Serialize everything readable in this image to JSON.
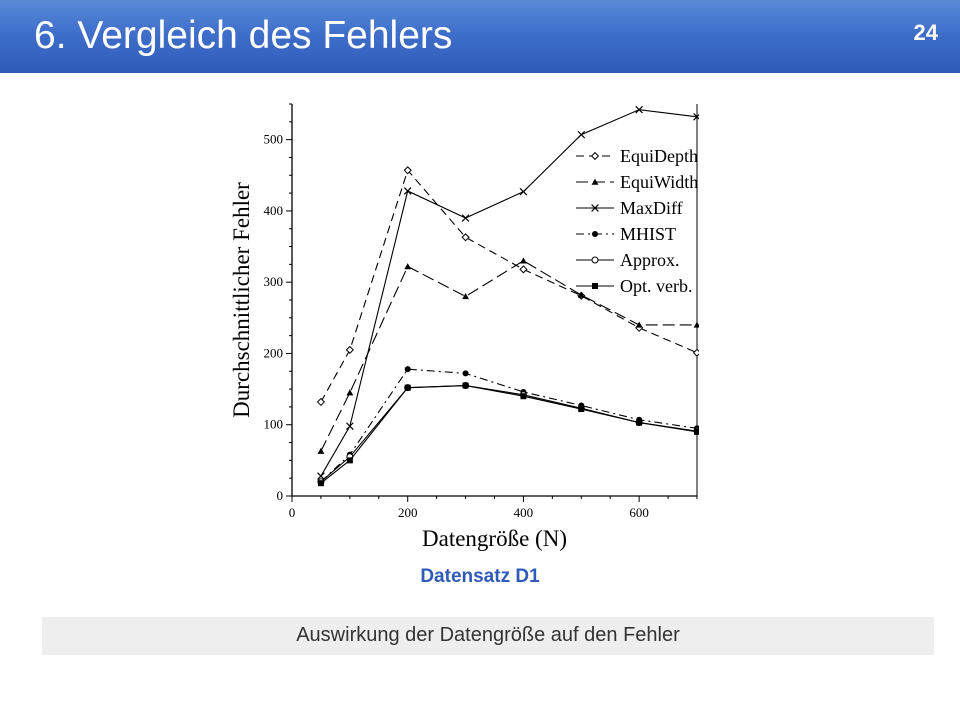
{
  "slide": {
    "title": "6. Vergleich des Fehlers",
    "page_number": "24",
    "dataset_label": "Datensatz D1",
    "caption": "Auswirkung der Datengröße auf den Fehler",
    "colors": {
      "header": "#3f6fca",
      "accent_text": "#2f5bb8",
      "caption_bg": "#eeeeee"
    }
  },
  "chart_data": {
    "type": "line",
    "title": "",
    "xlabel": "Datengröße (N)",
    "ylabel": "Durchschnittlicher Fehler",
    "xlim": [
      0,
      700
    ],
    "ylim": [
      0,
      550
    ],
    "xticks": [
      0,
      200,
      400,
      600
    ],
    "yticks": [
      0,
      100,
      200,
      300,
      400,
      500
    ],
    "grid": false,
    "legend_position": "top-right",
    "x": [
      50,
      100,
      200,
      300,
      400,
      500,
      600,
      700
    ],
    "series": [
      {
        "name": "EquiDepth",
        "values": [
          132,
          205,
          457,
          363,
          318,
          281,
          236,
          201
        ],
        "dash": "8,5",
        "marker": "diamond-open"
      },
      {
        "name": "EquiWidth",
        "values": [
          63,
          145,
          322,
          280,
          330,
          282,
          240,
          240
        ],
        "dash": "12,5",
        "marker": "triangle-filled"
      },
      {
        "name": "MaxDiff",
        "values": [
          28,
          98,
          428,
          390,
          427,
          507,
          542,
          532
        ],
        "dash": "",
        "marker": "x"
      },
      {
        "name": "MHIST",
        "values": [
          20,
          58,
          178,
          172,
          146,
          127,
          107,
          95
        ],
        "dash": "8,4,2,4",
        "marker": "circle-filled"
      },
      {
        "name": "Approx.",
        "values": [
          20,
          55,
          152,
          155,
          142,
          123,
          103,
          91
        ],
        "dash": "",
        "marker": "circle-open"
      },
      {
        "name": "Opt. verb.",
        "values": [
          18,
          50,
          152,
          155,
          140,
          122,
          103,
          90
        ],
        "dash": "",
        "marker": "square-filled"
      }
    ]
  }
}
